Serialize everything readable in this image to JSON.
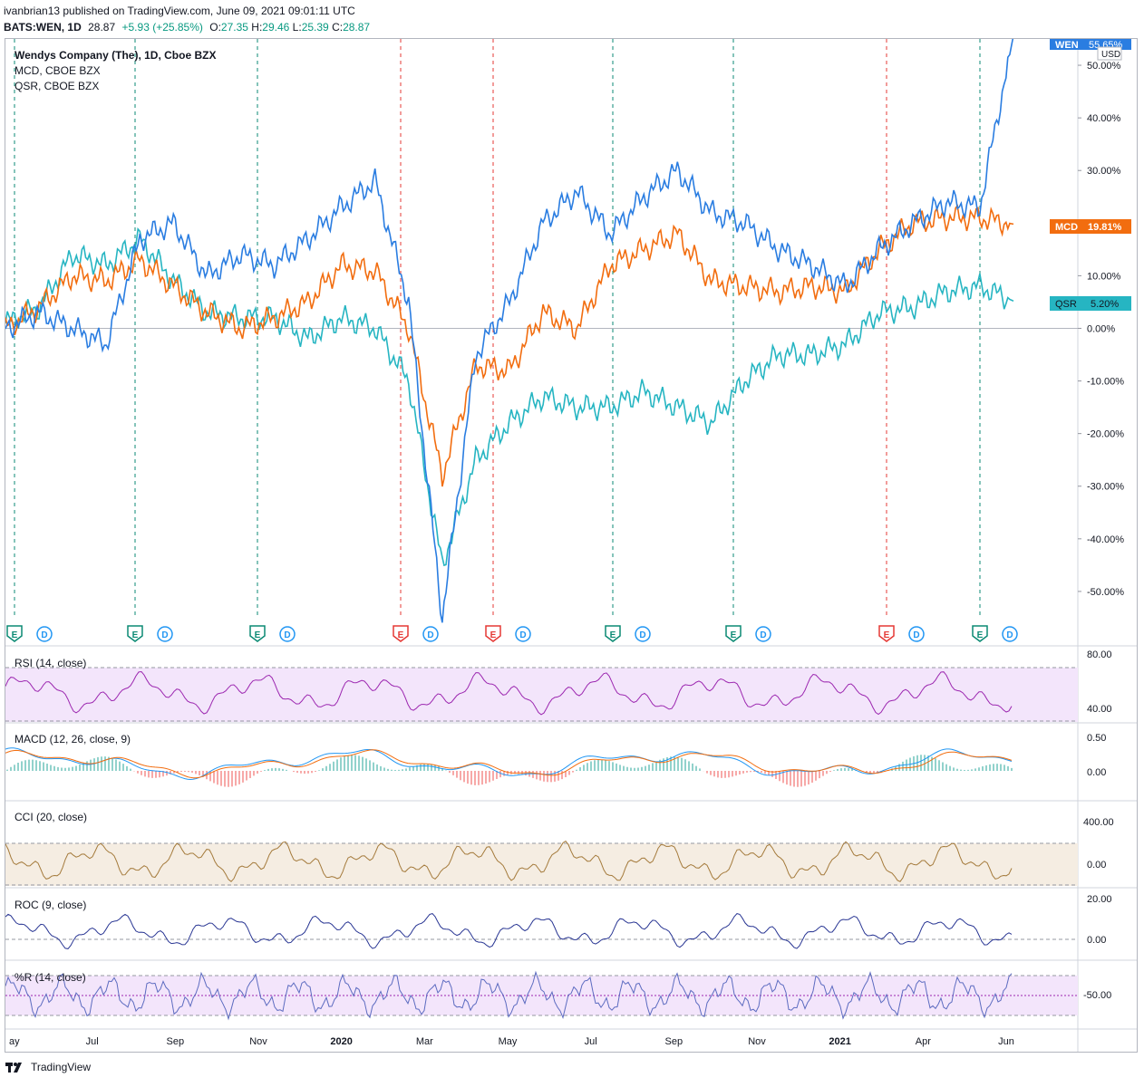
{
  "header": {
    "line1": "ivanbrian13 published on TradingView.com, June 09, 2021 09:01:11 UTC",
    "symbol": "BATS:WEN, 1D",
    "last": "28.87",
    "change": "+5.93 (+25.85%)",
    "o_label": "O:",
    "o": "27.35",
    "h_label": "H:",
    "h": "29.46",
    "l_label": "L:",
    "l": "25.39",
    "c_label": "C:",
    "c": "28.87"
  },
  "legend": {
    "main": "Wendys Company (The), 1D, Cboe BZX",
    "s2": "MCD, CBOE BZX",
    "s3": "QSR, CBOE BZX"
  },
  "currency": "USD",
  "colors": {
    "wen": "#2a7de1",
    "mcd": "#f26d0f",
    "qsr": "#26b5c2",
    "earnings_green": "#0b8a74",
    "earnings_red": "#e53935",
    "dividend": "#2196f3",
    "rsi": "#9c27b0",
    "rsi_band": "#f3e5fb",
    "macd_line": "#2196f3",
    "signal_line": "#f26d0f",
    "cci": "#a47a3b",
    "cci_band": "#f5ede2",
    "roc": "#283593",
    "wr": "#5c6bc0",
    "wr_band": "#f3e5fb"
  },
  "price_labels": {
    "wen": {
      "name": "WEN",
      "value": "55.65%"
    },
    "mcd": {
      "name": "MCD",
      "value": "19.81%"
    },
    "qsr": {
      "name": "QSR",
      "value": "5.20%"
    }
  },
  "events": [
    {
      "type": "E",
      "kind": "green"
    },
    {
      "type": "D"
    },
    {
      "type": "E",
      "kind": "green"
    },
    {
      "type": "D"
    },
    {
      "type": "E",
      "kind": "green"
    },
    {
      "type": "D"
    },
    {
      "type": "E",
      "kind": "red"
    },
    {
      "type": "D"
    },
    {
      "type": "E",
      "kind": "red"
    },
    {
      "type": "D"
    },
    {
      "type": "E",
      "kind": "green"
    },
    {
      "type": "D"
    },
    {
      "type": "E",
      "kind": "green"
    },
    {
      "type": "D"
    },
    {
      "type": "E",
      "kind": "red"
    },
    {
      "type": "D"
    },
    {
      "type": "E",
      "kind": "green"
    },
    {
      "type": "D"
    }
  ],
  "indicators": {
    "rsi": {
      "label": "RSI (14, close)",
      "ticks": [
        "80.00",
        "40.00"
      ]
    },
    "macd": {
      "label": "MACD (12, 26, close, 9)",
      "ticks": [
        "0.50",
        "0.00"
      ]
    },
    "cci": {
      "label": "CCI (20, close)",
      "ticks": [
        "400.00",
        "0.00"
      ]
    },
    "roc": {
      "label": "ROC (9, close)",
      "ticks": [
        "20.00",
        "0.00"
      ]
    },
    "wr": {
      "label": "%R (14, close)",
      "ticks": [
        "-50.00"
      ]
    }
  },
  "footer": {
    "brand": "TradingView"
  },
  "chart_data": {
    "type": "line",
    "y_unit": "%",
    "ylim": [
      -60,
      55
    ],
    "y_ticks": [
      "50.00%",
      "40.00%",
      "30.00%",
      "20.00%",
      "10.00%",
      "0.00%",
      "-10.00%",
      "-20.00%",
      "-30.00%",
      "-40.00%",
      "-50.00%"
    ],
    "x_ticks": [
      "ay",
      "Jul",
      "Sep",
      "Nov",
      "2020",
      "Mar",
      "May",
      "Jul",
      "Sep",
      "Nov",
      "2021",
      "Apr",
      "Jun"
    ],
    "x": [
      "2019-05",
      "2019-06",
      "2019-07",
      "2019-08",
      "2019-08",
      "2019-09",
      "2019-10",
      "2019-11",
      "2019-12",
      "2020-01",
      "2020-02",
      "2020-02",
      "2020-03",
      "2020-03",
      "2020-04",
      "2020-05",
      "2020-05",
      "2020-06",
      "2020-07",
      "2020-08",
      "2020-09",
      "2020-10",
      "2020-11",
      "2020-12",
      "2021-01",
      "2021-02",
      "2021-03",
      "2021-04",
      "2021-05",
      "2021-05",
      "2021-06"
    ],
    "series": [
      {
        "name": "WEN",
        "values": [
          0,
          3,
          0,
          -3,
          17,
          20,
          10,
          14,
          12,
          17,
          23,
          28,
          5,
          -55,
          -5,
          5,
          20,
          26,
          18,
          25,
          30,
          22,
          20,
          15,
          12,
          8,
          15,
          20,
          24,
          23,
          55.65
        ]
      },
      {
        "name": "MCD",
        "values": [
          0,
          4,
          10,
          9,
          13,
          8,
          3,
          0,
          2,
          5,
          12,
          11,
          0,
          -28,
          -7,
          -8,
          3,
          0,
          12,
          15,
          18,
          9,
          8,
          7,
          8,
          7,
          15,
          20,
          21,
          21,
          19.81
        ]
      },
      {
        "name": "QSR",
        "values": [
          1,
          4,
          14,
          12,
          17,
          9,
          3,
          2,
          2,
          -2,
          2,
          0,
          -10,
          -45,
          -25,
          -18,
          -13,
          -15,
          -15,
          -12,
          -15,
          -18,
          -10,
          -5,
          -5,
          -3,
          3,
          4,
          7,
          8,
          5.2
        ]
      }
    ]
  }
}
